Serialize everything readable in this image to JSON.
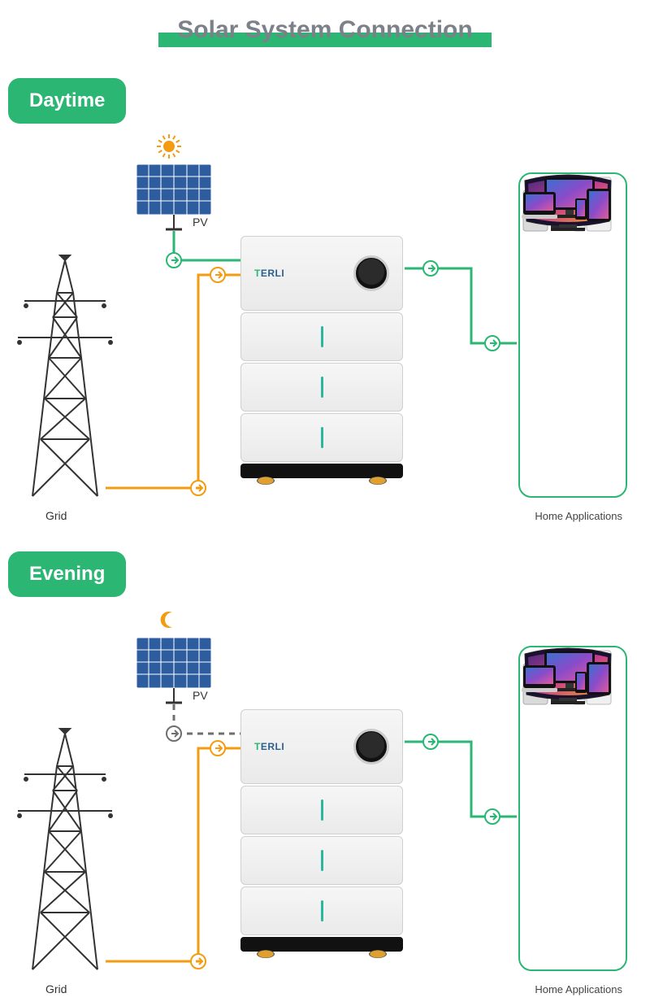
{
  "title": "Solar System Connection",
  "colors": {
    "accent_green": "#2bb673",
    "accent_orange": "#f39c12",
    "line_gray": "#6f6f6f",
    "title_color": "#7b8089",
    "pv_panel": "#2e5d9f",
    "pv_panel_dark": "#1f3b66",
    "tv_dark": "#1a1030"
  },
  "labels": {
    "grid": "Grid",
    "pv": "PV",
    "home": "Home Applications"
  },
  "brand": {
    "prefix": "T",
    "name": "ERLI"
  },
  "sections": [
    {
      "tag": "Daytime",
      "sky_icon": "sun",
      "lines": {
        "pv_to_inverter": {
          "color": "#2bb673",
          "dashed": false
        },
        "grid_to_inverter": {
          "color": "#f39c12",
          "dashed": false
        },
        "inverter_to_home": {
          "color": "#2bb673",
          "dashed": false
        }
      }
    },
    {
      "tag": "Evening",
      "sky_icon": "moon",
      "lines": {
        "pv_to_inverter": {
          "color": "#6f6f6f",
          "dashed": true
        },
        "grid_to_inverter": {
          "color": "#f39c12",
          "dashed": false
        },
        "inverter_to_home": {
          "color": "#2bb673",
          "dashed": false
        }
      }
    }
  ]
}
